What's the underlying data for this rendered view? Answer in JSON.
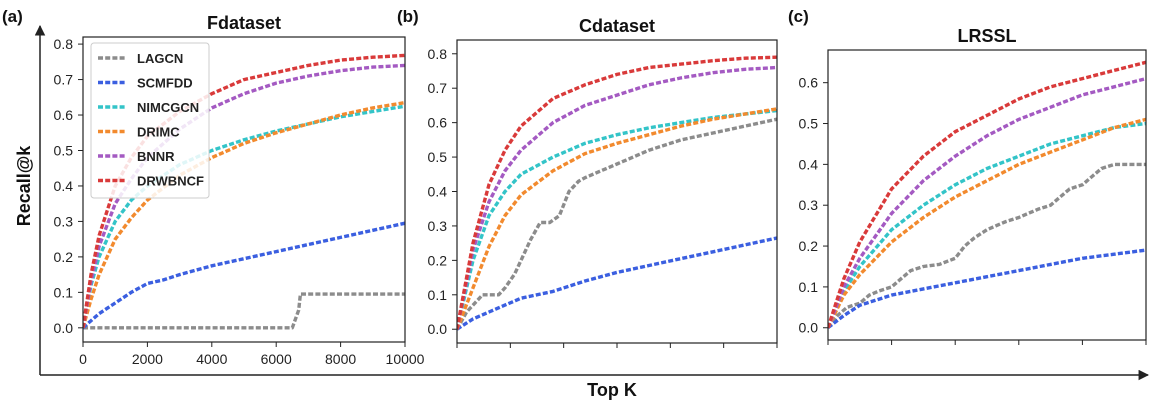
{
  "figure": {
    "ylabel": "Recall@k",
    "xlabel": "Top K",
    "colors": {
      "LAGCN": "#8c8c8c",
      "SCMFDD": "#3b5fe0",
      "NIMCGCN": "#33c4c8",
      "DRIMC": "#f28a2e",
      "BNNR": "#a45ac2",
      "DRWBNCF": "#d93a3a"
    },
    "legend": [
      "LAGCN",
      "SCMFDD",
      "NIMCGCN",
      "DRIMC",
      "BNNR",
      "DRWBNCF"
    ]
  },
  "chart_data": [
    {
      "type": "line",
      "panel_label": "(a)",
      "title": "Fdataset",
      "xlim": [
        0,
        10000
      ],
      "ylim": [
        -0.04,
        0.82
      ],
      "xticks": [
        0,
        2000,
        4000,
        6000,
        8000,
        10000
      ],
      "xtick_labels": [
        "0",
        "2000",
        "4000",
        "6000",
        "8000",
        "10000"
      ],
      "yticks": [
        0.0,
        0.1,
        0.2,
        0.3,
        0.4,
        0.5,
        0.6,
        0.7,
        0.8
      ],
      "ytick_labels": [
        "0.0",
        "0.1",
        "0.2",
        "0.3",
        "0.4",
        "0.5",
        "0.6",
        "0.7",
        "0.8"
      ],
      "legend_position": "top-left",
      "series": [
        {
          "name": "LAGCN",
          "x": [
            0,
            500,
            1000,
            2000,
            3000,
            4000,
            5000,
            6000,
            6500,
            6700,
            6750,
            7000,
            8000,
            9000,
            10000
          ],
          "y": [
            0,
            0,
            0,
            0,
            0,
            0,
            0,
            0,
            0,
            0.05,
            0.095,
            0.095,
            0.095,
            0.095,
            0.095
          ]
        },
        {
          "name": "SCMFDD",
          "x": [
            0,
            500,
            1000,
            1500,
            2000,
            2500,
            3000,
            4000,
            5000,
            6000,
            7000,
            8000,
            9000,
            10000
          ],
          "y": [
            0,
            0.04,
            0.07,
            0.1,
            0.125,
            0.135,
            0.15,
            0.175,
            0.195,
            0.215,
            0.235,
            0.255,
            0.275,
            0.295
          ]
        },
        {
          "name": "NIMCGCN",
          "x": [
            0,
            250,
            500,
            1000,
            1500,
            2000,
            3000,
            4000,
            5000,
            6000,
            7000,
            8000,
            9000,
            10000
          ],
          "y": [
            0,
            0.12,
            0.2,
            0.3,
            0.36,
            0.4,
            0.46,
            0.5,
            0.53,
            0.555,
            0.575,
            0.595,
            0.61,
            0.625
          ]
        },
        {
          "name": "DRIMC",
          "x": [
            0,
            250,
            500,
            1000,
            1500,
            2000,
            3000,
            4000,
            5000,
            6000,
            7000,
            8000,
            9000,
            10000
          ],
          "y": [
            0,
            0.08,
            0.15,
            0.25,
            0.31,
            0.36,
            0.43,
            0.48,
            0.52,
            0.55,
            0.575,
            0.6,
            0.62,
            0.635
          ]
        },
        {
          "name": "BNNR",
          "x": [
            0,
            250,
            500,
            1000,
            1500,
            2000,
            3000,
            4000,
            5000,
            6000,
            7000,
            8000,
            9000,
            10000
          ],
          "y": [
            0,
            0.13,
            0.23,
            0.35,
            0.42,
            0.48,
            0.56,
            0.62,
            0.66,
            0.69,
            0.71,
            0.725,
            0.735,
            0.74
          ]
        },
        {
          "name": "DRWBNCF",
          "x": [
            0,
            250,
            500,
            1000,
            1500,
            2000,
            3000,
            4000,
            5000,
            6000,
            7000,
            8000,
            9000,
            10000
          ],
          "y": [
            0,
            0.15,
            0.26,
            0.4,
            0.48,
            0.54,
            0.61,
            0.66,
            0.7,
            0.72,
            0.74,
            0.755,
            0.763,
            0.768
          ]
        }
      ]
    },
    {
      "type": "line",
      "panel_label": "(b)",
      "title": "Cdataset",
      "xlim": [
        0,
        10000
      ],
      "ylim": [
        -0.04,
        0.84
      ],
      "xticks": [
        0,
        1667,
        3333,
        5000,
        6667,
        8333,
        10000
      ],
      "xtick_labels": [],
      "yticks": [
        0.0,
        0.1,
        0.2,
        0.3,
        0.4,
        0.5,
        0.6,
        0.7,
        0.8
      ],
      "ytick_labels": [
        "0.0",
        "0.1",
        "0.2",
        "0.3",
        "0.4",
        "0.5",
        "0.6",
        "0.7",
        "0.8"
      ],
      "series": [
        {
          "name": "LAGCN",
          "x": [
            0,
            300,
            600,
            800,
            1000,
            1300,
            1500,
            1800,
            2000,
            2300,
            2600,
            2900,
            3200,
            3500,
            3800,
            4000,
            4500,
            5000,
            6000,
            7000,
            8000,
            9000,
            10000
          ],
          "y": [
            0,
            0.05,
            0.08,
            0.1,
            0.1,
            0.1,
            0.12,
            0.16,
            0.2,
            0.26,
            0.31,
            0.31,
            0.33,
            0.4,
            0.43,
            0.44,
            0.46,
            0.48,
            0.52,
            0.55,
            0.57,
            0.59,
            0.61
          ]
        },
        {
          "name": "SCMFDD",
          "x": [
            0,
            500,
            1000,
            2000,
            3000,
            4000,
            5000,
            6000,
            7000,
            8000,
            9000,
            10000
          ],
          "y": [
            0,
            0.03,
            0.05,
            0.09,
            0.11,
            0.14,
            0.165,
            0.185,
            0.205,
            0.225,
            0.245,
            0.265
          ]
        },
        {
          "name": "NIMCGCN",
          "x": [
            0,
            500,
            1000,
            1500,
            2000,
            3000,
            4000,
            5000,
            6000,
            7000,
            8000,
            9000,
            10000
          ],
          "y": [
            0,
            0.2,
            0.33,
            0.4,
            0.45,
            0.5,
            0.54,
            0.565,
            0.585,
            0.6,
            0.615,
            0.625,
            0.635
          ]
        },
        {
          "name": "DRIMC",
          "x": [
            0,
            500,
            1000,
            1500,
            2000,
            3000,
            4000,
            5000,
            6000,
            7000,
            8000,
            9000,
            10000
          ],
          "y": [
            0,
            0.12,
            0.24,
            0.33,
            0.39,
            0.46,
            0.51,
            0.54,
            0.565,
            0.59,
            0.61,
            0.625,
            0.64
          ]
        },
        {
          "name": "BNNR",
          "x": [
            0,
            500,
            1000,
            1500,
            2000,
            3000,
            4000,
            5000,
            6000,
            7000,
            8000,
            9000,
            10000
          ],
          "y": [
            0,
            0.23,
            0.37,
            0.46,
            0.52,
            0.6,
            0.65,
            0.68,
            0.71,
            0.73,
            0.745,
            0.755,
            0.76
          ]
        },
        {
          "name": "DRWBNCF",
          "x": [
            0,
            500,
            1000,
            1500,
            2000,
            3000,
            4000,
            5000,
            6000,
            7000,
            8000,
            9000,
            10000
          ],
          "y": [
            0,
            0.25,
            0.42,
            0.52,
            0.59,
            0.67,
            0.71,
            0.74,
            0.76,
            0.77,
            0.78,
            0.787,
            0.79
          ]
        }
      ]
    },
    {
      "type": "line",
      "panel_label": "(c)",
      "title": "LRSSL",
      "xlim": [
        0,
        10000
      ],
      "ylim": [
        -0.03,
        0.68
      ],
      "xticks": [
        0,
        2000,
        4000,
        6000,
        8000,
        10000
      ],
      "xtick_labels": [],
      "yticks": [
        0.0,
        0.1,
        0.2,
        0.3,
        0.4,
        0.5,
        0.6
      ],
      "ytick_labels": [
        "0.0",
        "0.1",
        "0.2",
        "0.3",
        "0.4",
        "0.5",
        "0.6"
      ],
      "series": [
        {
          "name": "LAGCN",
          "x": [
            0,
            300,
            600,
            1000,
            1300,
            1600,
            2000,
            2300,
            2600,
            3000,
            3500,
            4000,
            4300,
            4600,
            5000,
            5300,
            5600,
            6000,
            6300,
            6600,
            7000,
            7300,
            7600,
            8000,
            8300,
            8600,
            9000,
            9500,
            10000
          ],
          "y": [
            0,
            0.03,
            0.05,
            0.06,
            0.08,
            0.09,
            0.1,
            0.12,
            0.14,
            0.15,
            0.155,
            0.17,
            0.2,
            0.22,
            0.24,
            0.25,
            0.26,
            0.27,
            0.28,
            0.29,
            0.3,
            0.32,
            0.34,
            0.35,
            0.37,
            0.39,
            0.4,
            0.4,
            0.4
          ]
        },
        {
          "name": "SCMFDD",
          "x": [
            0,
            500,
            1000,
            2000,
            3000,
            4000,
            5000,
            6000,
            7000,
            8000,
            9000,
            10000
          ],
          "y": [
            0,
            0.03,
            0.055,
            0.08,
            0.095,
            0.11,
            0.125,
            0.14,
            0.155,
            0.17,
            0.18,
            0.19
          ]
        },
        {
          "name": "NIMCGCN",
          "x": [
            0,
            500,
            1000,
            2000,
            3000,
            4000,
            5000,
            6000,
            7000,
            8000,
            9000,
            10000
          ],
          "y": [
            0,
            0.09,
            0.15,
            0.24,
            0.3,
            0.35,
            0.39,
            0.42,
            0.45,
            0.47,
            0.49,
            0.5
          ]
        },
        {
          "name": "DRIMC",
          "x": [
            0,
            500,
            1000,
            2000,
            3000,
            4000,
            5000,
            6000,
            7000,
            8000,
            9000,
            10000
          ],
          "y": [
            0,
            0.08,
            0.13,
            0.21,
            0.27,
            0.32,
            0.36,
            0.4,
            0.43,
            0.46,
            0.49,
            0.51
          ]
        },
        {
          "name": "BNNR",
          "x": [
            0,
            500,
            1000,
            2000,
            3000,
            4000,
            5000,
            6000,
            7000,
            8000,
            9000,
            10000
          ],
          "y": [
            0,
            0.1,
            0.17,
            0.28,
            0.36,
            0.42,
            0.47,
            0.51,
            0.54,
            0.57,
            0.59,
            0.61
          ]
        },
        {
          "name": "DRWBNCF",
          "x": [
            0,
            500,
            1000,
            2000,
            3000,
            4000,
            5000,
            6000,
            7000,
            8000,
            9000,
            10000
          ],
          "y": [
            0,
            0.12,
            0.21,
            0.34,
            0.42,
            0.48,
            0.52,
            0.56,
            0.59,
            0.61,
            0.63,
            0.65
          ]
        }
      ]
    }
  ]
}
